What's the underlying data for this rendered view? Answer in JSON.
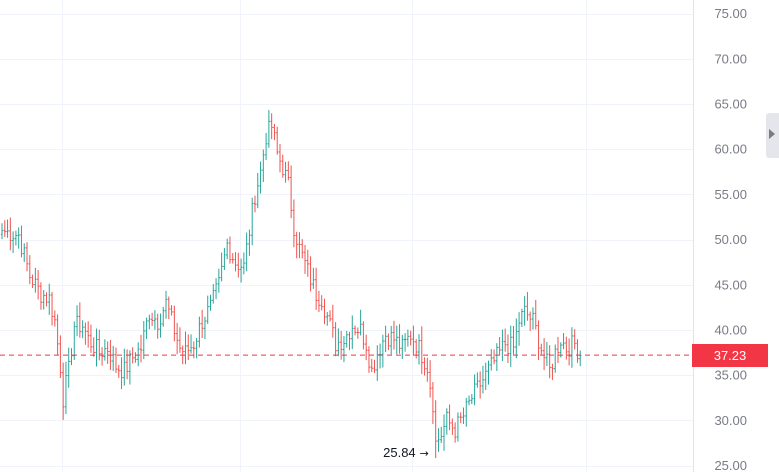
{
  "colors": {
    "up": "#26a69a",
    "down": "#ef5350",
    "last_price": "#f23645",
    "grid": "#f0f3fa",
    "axis_text": "#787b86",
    "annotation_text": "#131722"
  },
  "scroll_handle": {
    "icon": "chevron-right-icon"
  },
  "chart_data": {
    "type": "ohlc",
    "title": "",
    "xlabel": "",
    "ylabel": "",
    "ylim": [
      24.3,
      76.5
    ],
    "grid": true,
    "y_ticks": [
      "75.00",
      "70.00",
      "65.00",
      "60.00",
      "55.00",
      "50.00",
      "45.00",
      "40.00",
      "35.00",
      "30.00",
      "25.00"
    ],
    "last_price": {
      "label": "37.23",
      "value": 37.23
    },
    "min_annotation": {
      "label": "25.84",
      "value": 25.84
    },
    "waypoints": [
      [
        0,
        51.0
      ],
      [
        6,
        50.5
      ],
      [
        10,
        46.0
      ],
      [
        14,
        44.0
      ],
      [
        17,
        43.5
      ],
      [
        19,
        41.0
      ],
      [
        21,
        36.0
      ],
      [
        22,
        32.5
      ],
      [
        24,
        35.5
      ],
      [
        26,
        40.5
      ],
      [
        29,
        40.5
      ],
      [
        31,
        39.0
      ],
      [
        35,
        37.5
      ],
      [
        38,
        38.0
      ],
      [
        41,
        36.0
      ],
      [
        44,
        35.5
      ],
      [
        47,
        37.0
      ],
      [
        50,
        38.0
      ],
      [
        53,
        42.0
      ],
      [
        56,
        41.0
      ],
      [
        59,
        43.0
      ],
      [
        62,
        40.0
      ],
      [
        64,
        38.0
      ],
      [
        66,
        37.5
      ],
      [
        69,
        38.5
      ],
      [
        72,
        41.0
      ],
      [
        75,
        42.5
      ],
      [
        78,
        45.0
      ],
      [
        81,
        49.5
      ],
      [
        84,
        47.5
      ],
      [
        87,
        47.0
      ],
      [
        89,
        51.0
      ],
      [
        91,
        55.0
      ],
      [
        93,
        57.5
      ],
      [
        95,
        61.5
      ],
      [
        97,
        62.5
      ],
      [
        99,
        59.5
      ],
      [
        101,
        58.0
      ],
      [
        103,
        56.0
      ],
      [
        105,
        51.5
      ],
      [
        107,
        49.0
      ],
      [
        110,
        46.5
      ],
      [
        113,
        44.0
      ],
      [
        115,
        43.5
      ],
      [
        118,
        40.5
      ],
      [
        120,
        38.5
      ],
      [
        123,
        39.0
      ],
      [
        126,
        40.5
      ],
      [
        129,
        40.0
      ],
      [
        131,
        38.5
      ],
      [
        133,
        35.5
      ],
      [
        135,
        37.5
      ],
      [
        138,
        39.5
      ],
      [
        141,
        39.0
      ],
      [
        144,
        38.0
      ],
      [
        147,
        39.5
      ],
      [
        150,
        38.0
      ],
      [
        153,
        36.0
      ],
      [
        155,
        32.0
      ],
      [
        156,
        27.5
      ],
      [
        158,
        28.5
      ],
      [
        160,
        30.0
      ],
      [
        163,
        29.0
      ],
      [
        166,
        30.5
      ],
      [
        169,
        32.5
      ],
      [
        172,
        34.0
      ],
      [
        175,
        35.5
      ],
      [
        178,
        37.0
      ],
      [
        181,
        38.5
      ],
      [
        184,
        38.0
      ],
      [
        186,
        41.0
      ],
      [
        188,
        42.0
      ],
      [
        191,
        41.0
      ],
      [
        193,
        39.0
      ],
      [
        195,
        37.0
      ],
      [
        197,
        35.5
      ],
      [
        199,
        37.5
      ],
      [
        201,
        39.0
      ],
      [
        203,
        38.0
      ],
      [
        206,
        38.5
      ],
      [
        208,
        37.2
      ]
    ]
  }
}
